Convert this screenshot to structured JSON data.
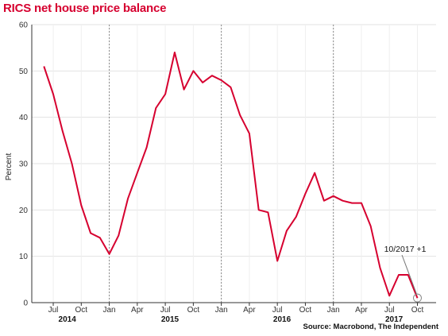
{
  "title": "RICS net house price balance",
  "source": "Source: Macrobond, The Independent",
  "colors": {
    "title": "#d6002f",
    "line": "#d6002f",
    "grid": "#e2e2e2"
  },
  "chart_data": {
    "type": "line",
    "ylabel": "Percent",
    "ylim": [
      0,
      60
    ],
    "yticks": [
      0,
      10,
      20,
      30,
      40,
      50,
      60
    ],
    "grid": true,
    "x_tick_labels": [
      "Jul",
      "Oct",
      "Jan",
      "Apr",
      "Jul",
      "Oct",
      "Jan",
      "Apr",
      "Jul",
      "Oct",
      "Jan",
      "Apr",
      "Jul",
      "Oct"
    ],
    "x_tick_months": [
      1,
      4,
      7,
      10,
      13,
      16,
      19,
      22,
      25,
      28,
      31,
      34,
      37,
      40
    ],
    "year_labels": [
      {
        "label": "2014",
        "month": 2.5
      },
      {
        "label": "2015",
        "month": 13.5
      },
      {
        "label": "2016",
        "month": 25.5
      },
      {
        "label": "2017",
        "month": 37.5
      }
    ],
    "year_dividers": [
      7,
      19,
      31
    ],
    "series": [
      {
        "x": [
          "2014-06",
          "2014-07",
          "2014-08",
          "2014-09",
          "2014-10",
          "2014-11",
          "2014-12",
          "2015-01",
          "2015-02",
          "2015-03",
          "2015-04",
          "2015-05",
          "2015-06",
          "2015-07",
          "2015-08",
          "2015-09",
          "2015-10",
          "2015-11",
          "2015-12",
          "2016-01",
          "2016-02",
          "2016-03",
          "2016-04",
          "2016-05",
          "2016-06",
          "2016-07",
          "2016-08",
          "2016-09",
          "2016-10",
          "2016-11",
          "2016-12",
          "2017-01",
          "2017-02",
          "2017-03",
          "2017-04",
          "2017-05",
          "2017-06",
          "2017-07",
          "2017-08",
          "2017-09",
          "2017-10"
        ],
        "values": [
          51,
          45,
          37,
          30,
          21,
          15,
          14,
          10.5,
          14.5,
          22.5,
          28,
          33.5,
          42,
          45,
          54,
          46,
          50,
          47.5,
          49,
          48,
          46.5,
          40.5,
          36.5,
          20,
          19.5,
          9,
          15.5,
          18.5,
          23.5,
          28,
          22,
          23,
          22,
          21.5,
          21.5,
          16.5,
          7.5,
          1.5,
          6,
          6,
          1
        ]
      }
    ],
    "annotation": {
      "text": "10/2017  +1",
      "month": 40,
      "value": 1
    }
  }
}
